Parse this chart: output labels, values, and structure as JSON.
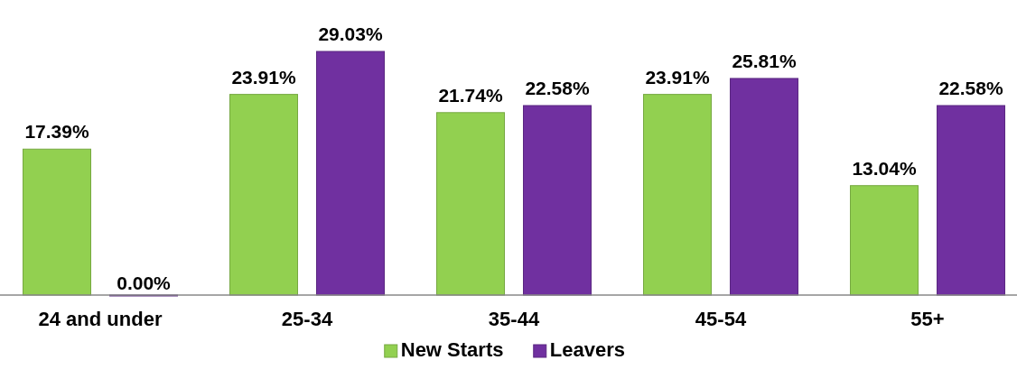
{
  "chart_data": {
    "type": "bar",
    "categories": [
      "24 and under",
      "25-34",
      "35-44",
      "45-54",
      "55+"
    ],
    "series": [
      {
        "name": "New Starts",
        "color": "#92d050",
        "values": [
          17.39,
          23.91,
          21.74,
          23.91,
          13.04
        ],
        "value_labels": [
          "17.39%",
          "23.91%",
          "21.74%",
          "23.91%",
          "13.04%"
        ]
      },
      {
        "name": "Leavers",
        "color": "#7030a0",
        "values": [
          0,
          29.03,
          22.58,
          25.81,
          22.58
        ],
        "value_labels": [
          "0.00%",
          "29.03%",
          "22.58%",
          "25.81%",
          "22.58%"
        ]
      }
    ],
    "legend": "bottom"
  }
}
